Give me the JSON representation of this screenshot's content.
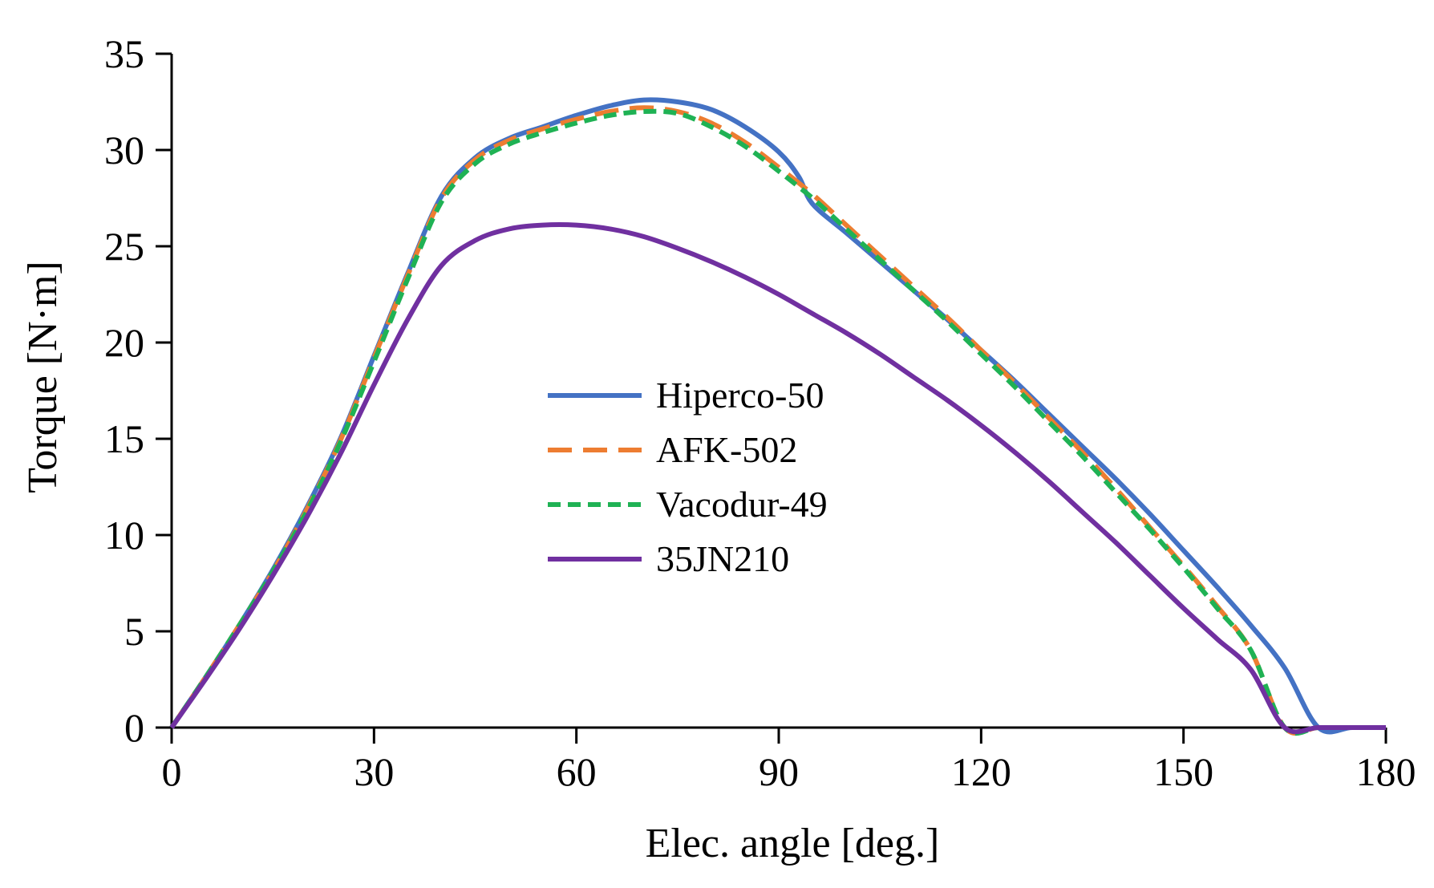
{
  "chart_data": {
    "type": "line",
    "title": "",
    "xlabel": "Elec. angle [deg.]",
    "ylabel": "Torque [N·m]",
    "xlim": [
      0,
      180
    ],
    "ylim": [
      0,
      35
    ],
    "xticks": [
      0,
      30,
      60,
      90,
      120,
      150,
      180
    ],
    "yticks": [
      0,
      5,
      10,
      15,
      20,
      25,
      30,
      35
    ],
    "grid": false,
    "legend_position": "center",
    "series": [
      {
        "name": "Hiperco-50",
        "color": "#4472c4",
        "dash": "solid",
        "x": [
          0,
          5,
          10,
          15,
          20,
          25,
          30,
          35,
          40,
          45,
          50,
          55,
          60,
          65,
          70,
          75,
          80,
          85,
          90,
          93,
          95,
          100,
          105,
          110,
          115,
          120,
          125,
          130,
          135,
          140,
          145,
          150,
          155,
          160,
          165,
          170,
          175,
          180
        ],
        "y": [
          0,
          2.6,
          5.3,
          8.2,
          11.4,
          15.0,
          19.3,
          23.6,
          27.6,
          29.6,
          30.6,
          31.2,
          31.8,
          32.3,
          32.6,
          32.5,
          32.1,
          31.2,
          29.9,
          28.6,
          27.2,
          25.7,
          24.2,
          22.7,
          21.2,
          19.6,
          18.0,
          16.3,
          14.6,
          12.9,
          11.1,
          9.2,
          7.3,
          5.3,
          3.1,
          0,
          0,
          0
        ]
      },
      {
        "name": "AFK-502",
        "color": "#ed7d31",
        "dash": "long-dash",
        "x": [
          0,
          5,
          10,
          15,
          20,
          25,
          30,
          35,
          40,
          45,
          50,
          55,
          60,
          65,
          70,
          75,
          80,
          85,
          90,
          95,
          100,
          105,
          110,
          115,
          120,
          125,
          130,
          135,
          140,
          145,
          150,
          155,
          160,
          165,
          170,
          175,
          180
        ],
        "y": [
          0,
          2.6,
          5.3,
          8.1,
          11.3,
          14.9,
          19.2,
          23.5,
          27.5,
          29.5,
          30.5,
          31.1,
          31.6,
          32.0,
          32.2,
          32.0,
          31.4,
          30.4,
          29.1,
          27.7,
          26.1,
          24.5,
          22.9,
          21.3,
          19.6,
          17.9,
          16.1,
          14.3,
          12.4,
          10.4,
          8.4,
          6.3,
          4.0,
          0,
          0,
          0,
          0
        ]
      },
      {
        "name": "Vacodur-49",
        "color": "#1fb254",
        "dash": "short-dash",
        "x": [
          0,
          5,
          10,
          15,
          20,
          25,
          30,
          35,
          40,
          45,
          50,
          55,
          60,
          65,
          70,
          75,
          80,
          85,
          90,
          95,
          100,
          105,
          110,
          115,
          120,
          125,
          130,
          135,
          140,
          145,
          150,
          155,
          160,
          165,
          170,
          175,
          180
        ],
        "y": [
          0,
          2.6,
          5.3,
          8.1,
          11.2,
          14.8,
          19.0,
          23.3,
          27.3,
          29.3,
          30.3,
          30.9,
          31.4,
          31.8,
          32.0,
          31.9,
          31.2,
          30.2,
          28.9,
          27.5,
          25.9,
          24.3,
          22.7,
          21.1,
          19.4,
          17.7,
          15.9,
          14.1,
          12.2,
          10.3,
          8.3,
          6.2,
          4.0,
          0,
          0,
          0,
          0
        ]
      },
      {
        "name": "35JN210",
        "color": "#7030a0",
        "dash": "solid",
        "x": [
          0,
          5,
          10,
          15,
          20,
          25,
          30,
          35,
          40,
          45,
          50,
          55,
          60,
          65,
          70,
          75,
          80,
          85,
          90,
          95,
          100,
          105,
          110,
          115,
          120,
          125,
          130,
          135,
          140,
          145,
          150,
          155,
          160,
          165,
          170,
          175,
          180
        ],
        "y": [
          0,
          2.5,
          5.1,
          7.9,
          10.9,
          14.2,
          17.8,
          21.2,
          24.0,
          25.3,
          25.9,
          26.1,
          26.1,
          25.9,
          25.5,
          24.9,
          24.2,
          23.4,
          22.5,
          21.5,
          20.5,
          19.4,
          18.2,
          17.0,
          15.7,
          14.3,
          12.8,
          11.2,
          9.6,
          7.9,
          6.2,
          4.6,
          3.0,
          0,
          0,
          0,
          0
        ]
      }
    ]
  }
}
